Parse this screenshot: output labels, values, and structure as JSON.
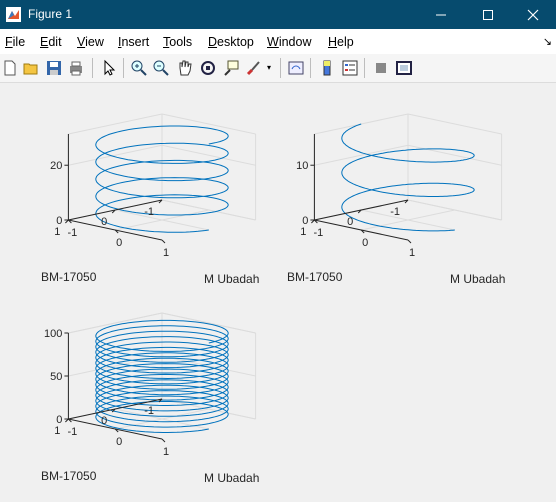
{
  "window": {
    "title": "Figure 1"
  },
  "menu": [
    "File",
    "Edit",
    "View",
    "Insert",
    "Tools",
    "Desktop",
    "Window",
    "Help"
  ],
  "menu_underline": [
    "F",
    "E",
    "V",
    "I",
    "T",
    "D",
    "W",
    "H"
  ],
  "toolbar": [
    "new-figure-icon",
    "open-file-icon",
    "save-icon",
    "print-icon",
    "pointer-icon",
    "zoom-in-icon",
    "zoom-out-icon",
    "pan-icon",
    "rotate-3d-icon",
    "data-cursor-icon",
    "brush-icon",
    "link-plot-icon",
    "colorbar-icon",
    "legend-icon",
    "hide-plot-tools-icon",
    "show-plot-tools-icon"
  ],
  "colors": {
    "titlebar": "#064b6e",
    "line": "#0072bd",
    "axes": "#262626",
    "grid": "#dcdcdc"
  },
  "chart_data": [
    {
      "type": "line",
      "view": "3d",
      "description_of_curve": "helix x=cos(t), y=sin(t), z=t",
      "turns": 5,
      "x": {
        "label": "M Ubadah",
        "ticks": [
          "-1",
          "0",
          "1"
        ],
        "lim": [
          -1,
          1
        ]
      },
      "y": {
        "label": "BM-17050",
        "ticks": [
          "-1",
          "0",
          "1"
        ],
        "lim": [
          -1,
          1
        ]
      },
      "z": {
        "label": "",
        "ticks": [
          "0",
          "20"
        ],
        "lim": [
          0,
          31.4
        ]
      },
      "grid": true
    },
    {
      "type": "line",
      "view": "3d",
      "description_of_curve": "helix x=cos(t), y=sin(t), z=t",
      "turns": 2.5,
      "x": {
        "label": "M Ubadah",
        "ticks": [
          "-1",
          "0",
          "1"
        ],
        "lim": [
          -1,
          1
        ]
      },
      "y": {
        "label": "BM-17050",
        "ticks": [
          "-1",
          "0",
          "1"
        ],
        "lim": [
          -1,
          1
        ]
      },
      "z": {
        "label": "",
        "ticks": [
          "0",
          "10"
        ],
        "lim": [
          0,
          15.7
        ]
      },
      "grid": true
    },
    {
      "type": "line",
      "view": "3d",
      "description_of_curve": "helix x=cos(t), y=sin(t), z=t",
      "turns": 16,
      "x": {
        "label": "M Ubadah",
        "ticks": [
          "-1",
          "0",
          "1"
        ],
        "lim": [
          -1,
          1
        ]
      },
      "y": {
        "label": "BM-17050",
        "ticks": [
          "-1",
          "0",
          "1"
        ],
        "lim": [
          -1,
          1
        ]
      },
      "z": {
        "label": "",
        "ticks": [
          "0",
          "50",
          "100"
        ],
        "lim": [
          0,
          100
        ]
      },
      "grid": true
    }
  ]
}
